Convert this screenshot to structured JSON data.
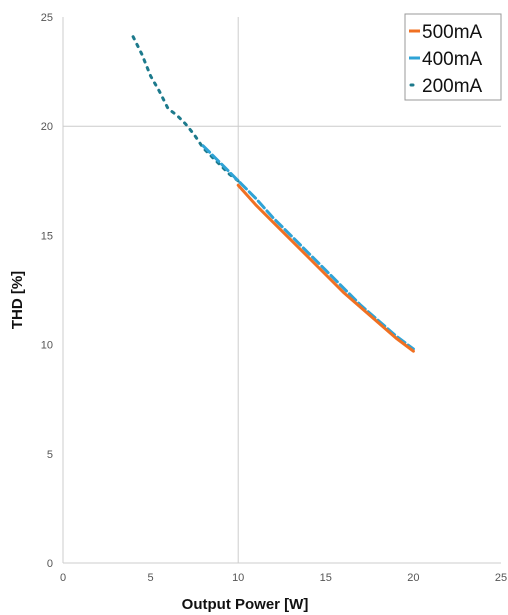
{
  "chart_data": {
    "type": "line",
    "title": "",
    "xlabel": "Output Power [W]",
    "ylabel": "THD [%]",
    "xlim": [
      0,
      25
    ],
    "ylim": [
      0,
      25
    ],
    "xticks": [
      "0",
      "5",
      "10",
      "15",
      "20",
      "25"
    ],
    "yticks": [
      "0",
      "5",
      "10",
      "15",
      "20",
      "25"
    ],
    "grid": "major gridlines at x=10 and y=20",
    "legend_position": "top-right",
    "series": [
      {
        "name": "500mA",
        "color": "#f07022",
        "style": "solid",
        "x": [
          10,
          11,
          12,
          13,
          14,
          15,
          16,
          17,
          18,
          19,
          20
        ],
        "y": [
          17.3,
          16.4,
          15.6,
          14.8,
          14.0,
          13.2,
          12.4,
          11.7,
          11.0,
          10.3,
          9.7
        ]
      },
      {
        "name": "400mA",
        "color": "#2fa3d6",
        "style": "dashed",
        "x": [
          8,
          9,
          10,
          11,
          12,
          13,
          14,
          15,
          16,
          17,
          18,
          19,
          20
        ],
        "y": [
          19.1,
          18.3,
          17.5,
          16.7,
          15.8,
          15.0,
          14.2,
          13.4,
          12.6,
          11.8,
          11.1,
          10.4,
          9.8
        ]
      },
      {
        "name": "200mA",
        "color": "#1d7a8c",
        "style": "dotted",
        "x": [
          4,
          4.5,
          5,
          5.5,
          6,
          6.5,
          7,
          7.5,
          8,
          8.5,
          9,
          9.5,
          10
        ],
        "y": [
          24.1,
          23.3,
          22.3,
          21.6,
          20.8,
          20.5,
          20.1,
          19.6,
          19.0,
          18.6,
          18.2,
          17.8,
          17.5
        ]
      }
    ]
  }
}
